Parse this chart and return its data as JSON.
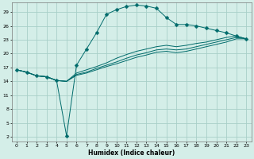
{
  "xlabel": "Humidex (Indice chaleur)",
  "bg_color": "#d4eee8",
  "line_color": "#006b6b",
  "grid_color": "#a8cfc8",
  "xlim": [
    -0.5,
    23.5
  ],
  "ylim": [
    1,
    31
  ],
  "xticks": [
    0,
    1,
    2,
    3,
    4,
    5,
    6,
    7,
    8,
    9,
    10,
    11,
    12,
    13,
    14,
    15,
    16,
    17,
    18,
    19,
    20,
    21,
    22,
    23
  ],
  "yticks": [
    2,
    5,
    8,
    11,
    14,
    17,
    20,
    23,
    26,
    29
  ],
  "lines": [
    {
      "x": [
        0,
        1,
        2,
        3,
        4,
        5,
        6,
        7,
        8,
        9,
        10,
        11,
        12,
        13,
        14,
        15,
        16,
        17,
        18,
        19,
        20,
        21,
        22,
        23
      ],
      "y": [
        16.5,
        16.0,
        15.2,
        15.0,
        14.2,
        2.2,
        17.5,
        21.0,
        24.5,
        28.5,
        29.5,
        30.2,
        30.5,
        30.3,
        29.8,
        27.8,
        26.3,
        26.3,
        26.0,
        25.5,
        25.0,
        24.5,
        23.8,
        23.2
      ],
      "marker": "D",
      "markersize": 2.5
    },
    {
      "x": [
        0,
        1,
        2,
        3,
        4,
        5,
        6,
        7,
        8,
        9,
        10,
        11,
        12,
        13,
        14,
        15,
        16,
        17,
        18,
        19,
        20,
        21,
        22,
        23
      ],
      "y": [
        16.5,
        16.0,
        15.2,
        15.0,
        14.2,
        14.0,
        15.8,
        16.5,
        17.2,
        18.0,
        19.0,
        19.8,
        20.5,
        21.0,
        21.5,
        21.8,
        21.5,
        21.8,
        22.2,
        22.5,
        23.0,
        23.5,
        23.8,
        23.2
      ],
      "marker": null,
      "markersize": 0
    },
    {
      "x": [
        0,
        1,
        2,
        3,
        4,
        5,
        6,
        7,
        8,
        9,
        10,
        11,
        12,
        13,
        14,
        15,
        16,
        17,
        18,
        19,
        20,
        21,
        22,
        23
      ],
      "y": [
        16.5,
        16.0,
        15.2,
        15.0,
        14.2,
        14.0,
        15.5,
        16.0,
        16.8,
        17.5,
        18.2,
        19.0,
        19.7,
        20.2,
        20.8,
        21.0,
        20.8,
        21.0,
        21.5,
        22.0,
        22.5,
        23.0,
        23.5,
        23.2
      ],
      "marker": null,
      "markersize": 0
    },
    {
      "x": [
        0,
        1,
        2,
        3,
        4,
        5,
        6,
        7,
        8,
        9,
        10,
        11,
        12,
        13,
        14,
        15,
        16,
        17,
        18,
        19,
        20,
        21,
        22,
        23
      ],
      "y": [
        16.5,
        16.0,
        15.2,
        15.0,
        14.2,
        14.0,
        15.3,
        15.8,
        16.5,
        17.2,
        17.8,
        18.5,
        19.2,
        19.7,
        20.3,
        20.5,
        20.2,
        20.5,
        21.0,
        21.5,
        22.0,
        22.5,
        23.2,
        23.2
      ],
      "marker": null,
      "markersize": 0
    }
  ]
}
